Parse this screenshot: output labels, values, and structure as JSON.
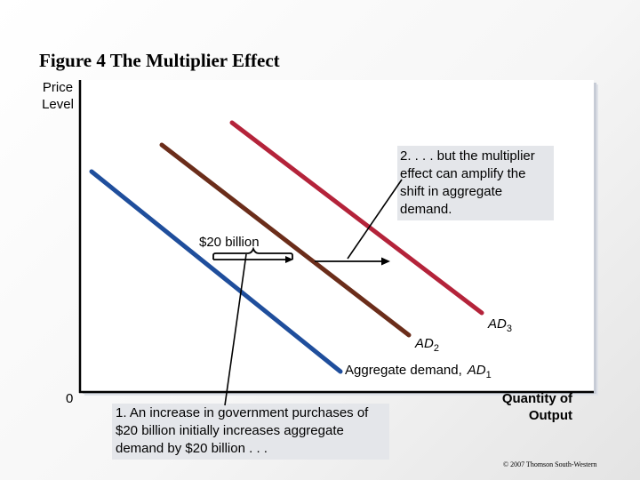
{
  "title": "Figure 4 The Multiplier Effect",
  "y_axis_label": "Price Level",
  "x_axis_label": "Quantity of Output",
  "origin_label": "0",
  "curves": {
    "ad1": {
      "name": "Aggregate demand,",
      "symbol": "AD",
      "sub": "1",
      "color": "#1f4e9c"
    },
    "ad2": {
      "symbol": "AD",
      "sub": "2",
      "color": "#6b2d1a"
    },
    "ad3": {
      "symbol": "AD",
      "sub": "3",
      "color": "#b4233a"
    }
  },
  "shift_label": "$20 billion",
  "callout_multiplier": "2. . . . but the multiplier effect can amplify the shift in aggregate demand.",
  "callout_government": "1. An increase in government purchases of $20 billion initially increases aggregate demand by $20 billion . . .",
  "copyright": "© 2007 Thomson South-Western"
}
